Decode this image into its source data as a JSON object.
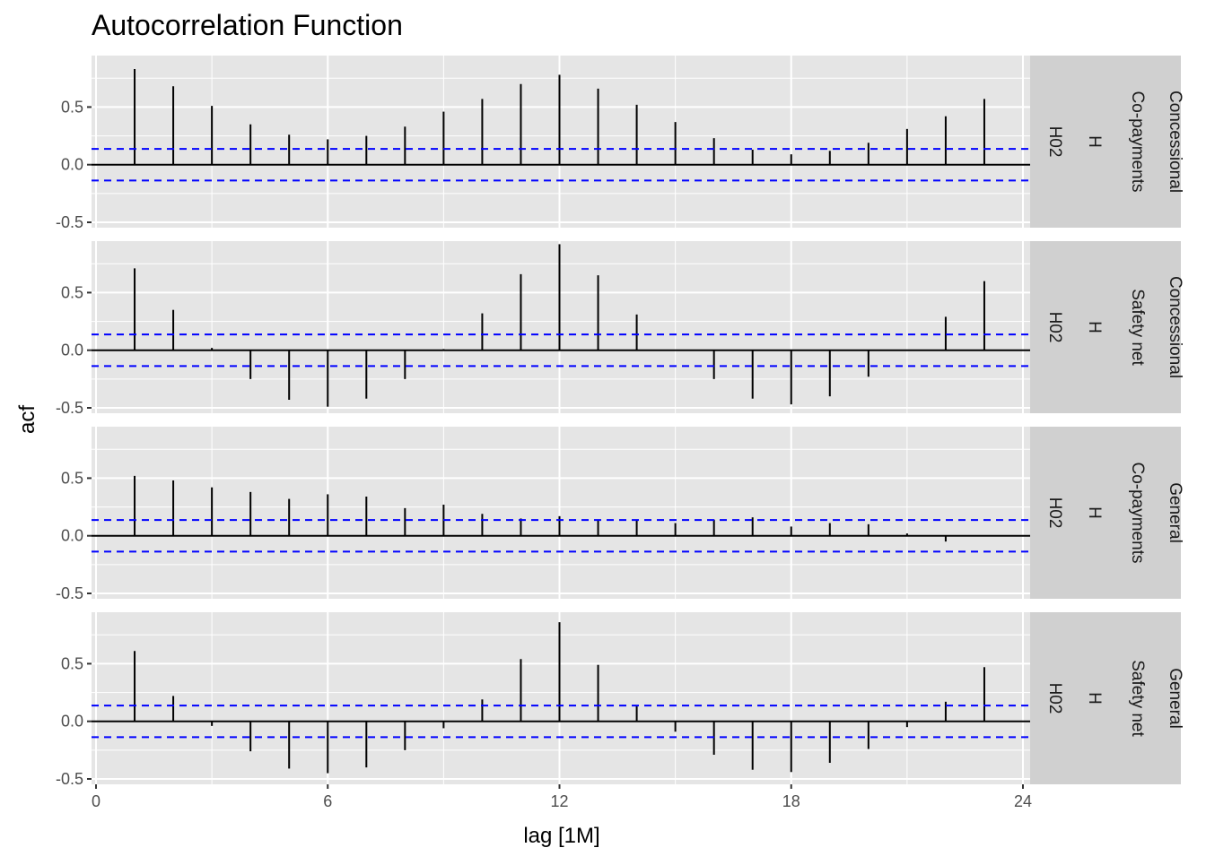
{
  "chart_data": {
    "type": "bar",
    "title": "Autocorrelation Function",
    "xlabel": "lag [1M]",
    "ylabel": "acf",
    "xlim": [
      0,
      24
    ],
    "ylim": [
      -0.5,
      0.9
    ],
    "x_ticks": [
      "0",
      "6",
      "12",
      "18",
      "24"
    ],
    "y_ticks": [
      "-0.5",
      "0.0",
      "0.5"
    ],
    "confidence_bound": 0.137,
    "colors": {
      "panel_bg": "#e5e5e5",
      "grid": "#ffffff",
      "strip_bg": "#d0d0d0",
      "bar": "#000000",
      "bound": "#0000ff"
    },
    "lags": [
      1,
      2,
      3,
      4,
      5,
      6,
      7,
      8,
      9,
      10,
      11,
      12,
      13,
      14,
      15,
      16,
      17,
      18,
      19,
      20,
      21,
      22,
      23
    ],
    "panels": [
      {
        "strip": [
          "Concessional",
          "Co-payments",
          "H",
          "H02"
        ],
        "values": [
          0.83,
          0.68,
          0.51,
          0.35,
          0.26,
          0.22,
          0.25,
          0.33,
          0.46,
          0.57,
          0.7,
          0.78,
          0.66,
          0.52,
          0.37,
          0.23,
          0.13,
          0.09,
          0.12,
          0.19,
          0.31,
          0.42,
          0.57
        ]
      },
      {
        "strip": [
          "Concessional",
          "Safety net",
          "H",
          "H02"
        ],
        "values": [
          0.71,
          0.35,
          0.02,
          -0.25,
          -0.43,
          -0.49,
          -0.42,
          -0.25,
          0.01,
          0.32,
          0.66,
          0.92,
          0.65,
          0.31,
          0.0,
          -0.25,
          -0.42,
          -0.47,
          -0.4,
          -0.23,
          0.0,
          0.29,
          0.6
        ]
      },
      {
        "strip": [
          "General",
          "Co-payments",
          "H",
          "H02"
        ],
        "values": [
          0.52,
          0.48,
          0.42,
          0.38,
          0.32,
          0.36,
          0.34,
          0.24,
          0.27,
          0.19,
          0.15,
          0.17,
          0.13,
          0.13,
          0.11,
          0.14,
          0.16,
          0.08,
          0.11,
          0.1,
          0.02,
          -0.05,
          0.0
        ]
      },
      {
        "strip": [
          "General",
          "Safety net",
          "H",
          "H02"
        ],
        "values": [
          0.61,
          0.22,
          -0.04,
          -0.26,
          -0.41,
          -0.45,
          -0.4,
          -0.25,
          -0.06,
          0.19,
          0.54,
          0.86,
          0.49,
          0.14,
          -0.09,
          -0.29,
          -0.42,
          -0.44,
          -0.36,
          -0.24,
          -0.05,
          0.17,
          0.47
        ]
      }
    ]
  }
}
